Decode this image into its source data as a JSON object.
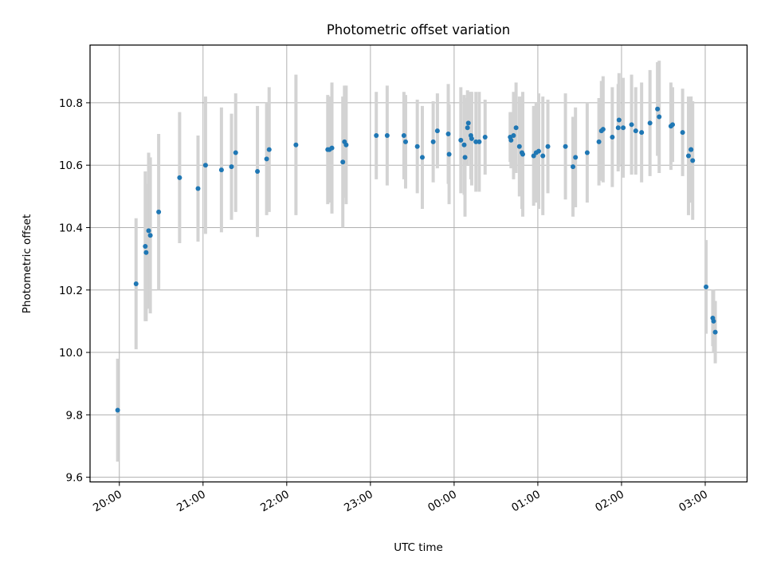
{
  "chart_data": {
    "type": "scatter",
    "title": "Photometric offset variation",
    "xlabel": "UTC time",
    "ylabel": "Photometric offset",
    "x_unit": "hours",
    "xlim": [
      -0.35,
      7.5
    ],
    "ylim": [
      9.585,
      10.985
    ],
    "x_ticks": [
      0,
      1,
      2,
      3,
      4,
      5,
      6,
      7
    ],
    "x_tick_labels": [
      "20:00",
      "21:00",
      "22:00",
      "23:00",
      "00:00",
      "01:00",
      "02:00",
      "03:00"
    ],
    "y_ticks": [
      9.6,
      9.8,
      10.0,
      10.2,
      10.4,
      10.6,
      10.8
    ],
    "y_tick_labels": [
      "9.6",
      "9.8",
      "10.0",
      "10.2",
      "10.4",
      "10.6",
      "10.8"
    ],
    "grid": true,
    "colors": {
      "point": "#1f77b4",
      "errorbar": "#d3d3d3",
      "grid": "#b0b0b0",
      "axis": "#000000"
    },
    "series": [
      {
        "x": [
          -0.02,
          0.2,
          0.31,
          0.32,
          0.35,
          0.37,
          0.47,
          0.72,
          0.94,
          1.03,
          1.22,
          1.34,
          1.39,
          1.65,
          1.76,
          1.79,
          2.11,
          2.49,
          2.51,
          2.54,
          2.67,
          2.69,
          2.71,
          3.07,
          3.2,
          3.4,
          3.42,
          3.56,
          3.62,
          3.75,
          3.8,
          3.93,
          3.94,
          4.08,
          4.12,
          4.13,
          4.16,
          4.17,
          4.2,
          4.21,
          4.26,
          4.3,
          4.37,
          4.67,
          4.68,
          4.71,
          4.74,
          4.78,
          4.81,
          4.82,
          4.95,
          4.98,
          5.01,
          5.06,
          5.12,
          5.33,
          5.42,
          5.45,
          5.59,
          5.73,
          5.76,
          5.78,
          5.89,
          5.96,
          5.97,
          6.02,
          6.12,
          6.17,
          6.24,
          6.34,
          6.43,
          6.45,
          6.59,
          6.61,
          6.73,
          6.8,
          6.83,
          6.83,
          6.85,
          7.01,
          7.09,
          7.1,
          7.12
        ],
        "y": [
          9.815,
          10.22,
          10.34,
          10.32,
          10.39,
          10.375,
          10.45,
          10.56,
          10.525,
          10.6,
          10.585,
          10.595,
          10.64,
          10.58,
          10.62,
          10.65,
          10.665,
          10.65,
          10.65,
          10.655,
          10.61,
          10.675,
          10.665,
          10.695,
          10.695,
          10.695,
          10.675,
          10.66,
          10.625,
          10.675,
          10.71,
          10.7,
          10.635,
          10.68,
          10.665,
          10.625,
          10.72,
          10.735,
          10.695,
          10.685,
          10.675,
          10.675,
          10.69,
          10.69,
          10.68,
          10.695,
          10.72,
          10.66,
          10.64,
          10.635,
          10.63,
          10.64,
          10.645,
          10.63,
          10.66,
          10.66,
          10.595,
          10.625,
          10.64,
          10.675,
          10.71,
          10.715,
          10.69,
          10.72,
          10.745,
          10.72,
          10.73,
          10.71,
          10.705,
          10.735,
          10.78,
          10.755,
          10.725,
          10.73,
          10.705,
          10.63,
          10.65,
          10.65,
          10.615,
          10.21,
          10.11,
          10.1,
          10.065
        ],
        "yerr": [
          0.165,
          0.21,
          0.24,
          0.22,
          0.25,
          0.25,
          0.25,
          0.21,
          0.17,
          0.22,
          0.2,
          0.17,
          0.19,
          0.21,
          0.18,
          0.2,
          0.225,
          0.175,
          0.17,
          0.21,
          0.21,
          0.18,
          0.19,
          0.14,
          0.16,
          0.14,
          0.15,
          0.15,
          0.165,
          0.13,
          0.12,
          0.16,
          0.16,
          0.17,
          0.16,
          0.19,
          0.12,
          0.1,
          0.14,
          0.15,
          0.16,
          0.16,
          0.12,
          0.08,
          0.09,
          0.14,
          0.145,
          0.16,
          0.18,
          0.2,
          0.16,
          0.16,
          0.185,
          0.19,
          0.15,
          0.17,
          0.16,
          0.16,
          0.16,
          0.14,
          0.16,
          0.17,
          0.16,
          0.14,
          0.15,
          0.16,
          0.16,
          0.14,
          0.16,
          0.17,
          0.15,
          0.18,
          0.14,
          0.12,
          0.14,
          0.19,
          0.17,
          0.17,
          0.19,
          0.15,
          0.09,
          0.1,
          0.1
        ]
      }
    ]
  }
}
